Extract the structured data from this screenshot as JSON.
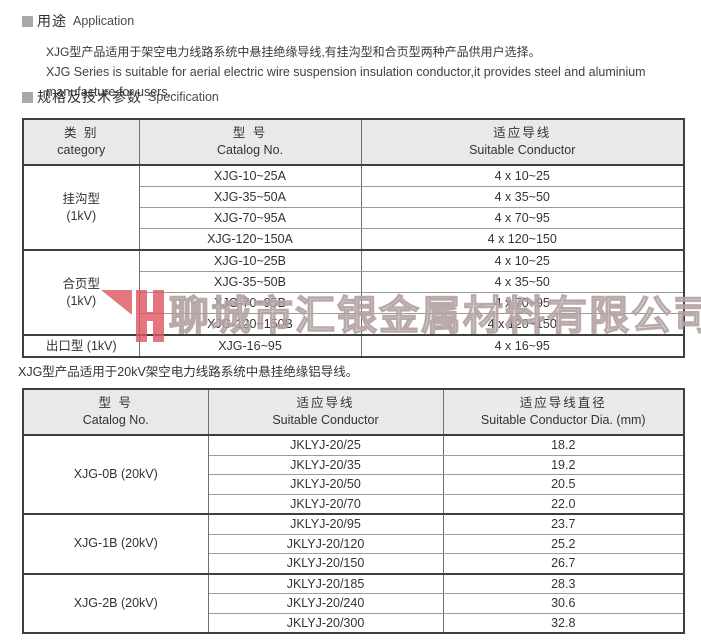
{
  "sections": {
    "application": {
      "title_zh": "用途",
      "title_en": "Application",
      "body_zh": "XJG型产品适用于架空电力线路系统中悬挂绝缘导线,有挂沟型和合页型两种产品供用户选择。",
      "body_en": "XJG Series is suitable for aerial electric wire suspension insulation conductor,it provides steel and aluminium manufacture for users."
    },
    "specification": {
      "title_zh": "规格及技术参数",
      "title_en": "Specification"
    }
  },
  "note_20kv": "XJG型产品适用于20kV架空电力线路系统中悬挂绝缘铝导线。",
  "watermark": {
    "company": "聊城市汇银金属材料有限公司",
    "logo": "huiyin-H-logo",
    "logo_color": "#dd5560"
  },
  "table1": {
    "col_headers": [
      {
        "zh": "类 别",
        "en": "category"
      },
      {
        "zh": "型 号",
        "en": "Catalog No."
      },
      {
        "zh": "适应导线",
        "en": "Suitable Conductor"
      }
    ],
    "groups": [
      {
        "category_lines": [
          "挂沟型",
          "(1kV)"
        ],
        "rows": [
          [
            "XJG-10~25A",
            "4 x 10~25"
          ],
          [
            "XJG-35~50A",
            "4 x 35~50"
          ],
          [
            "XJG-70~95A",
            "4 x 70~95"
          ],
          [
            "XJG-120~150A",
            "4 x 120~150"
          ]
        ]
      },
      {
        "category_lines": [
          "合页型",
          "(1kV)"
        ],
        "rows": [
          [
            "XJG-10~25B",
            "4 x 10~25"
          ],
          [
            "XJG-35~50B",
            "4 x 35~50"
          ],
          [
            "XJG-70~95B",
            "4 x 70~95"
          ],
          [
            "XJG-120~150B",
            "4 x 120~150"
          ]
        ]
      },
      {
        "category_lines": [
          "出口型 (1kV)"
        ],
        "rows": [
          [
            "XJG-16~95",
            "4 x 16~95"
          ]
        ]
      }
    ]
  },
  "table2": {
    "col_headers": [
      {
        "zh": "型 号",
        "en": "Catalog No."
      },
      {
        "zh": "适应导线",
        "en": "Suitable Conductor"
      },
      {
        "zh": "适应导线直径",
        "en": "Suitable Conductor Dia. (mm)"
      }
    ],
    "groups": [
      {
        "category_lines": [
          "XJG-0B (20kV)"
        ],
        "rows": [
          [
            "JKLYJ-20/25",
            "18.2"
          ],
          [
            "JKLYJ-20/35",
            "19.2"
          ],
          [
            "JKLYJ-20/50",
            "20.5"
          ],
          [
            "JKLYJ-20/70",
            "22.0"
          ]
        ]
      },
      {
        "category_lines": [
          "XJG-1B (20kV)"
        ],
        "rows": [
          [
            "JKLYJ-20/95",
            "23.7"
          ],
          [
            "JKLYJ-20/120",
            "25.2"
          ],
          [
            "JKLYJ-20/150",
            "26.7"
          ]
        ]
      },
      {
        "category_lines": [
          "XJG-2B (20kV)"
        ],
        "rows": [
          [
            "JKLYJ-20/185",
            "28.3"
          ],
          [
            "JKLYJ-20/240",
            "30.6"
          ],
          [
            "JKLYJ-20/300",
            "32.8"
          ]
        ]
      }
    ]
  }
}
